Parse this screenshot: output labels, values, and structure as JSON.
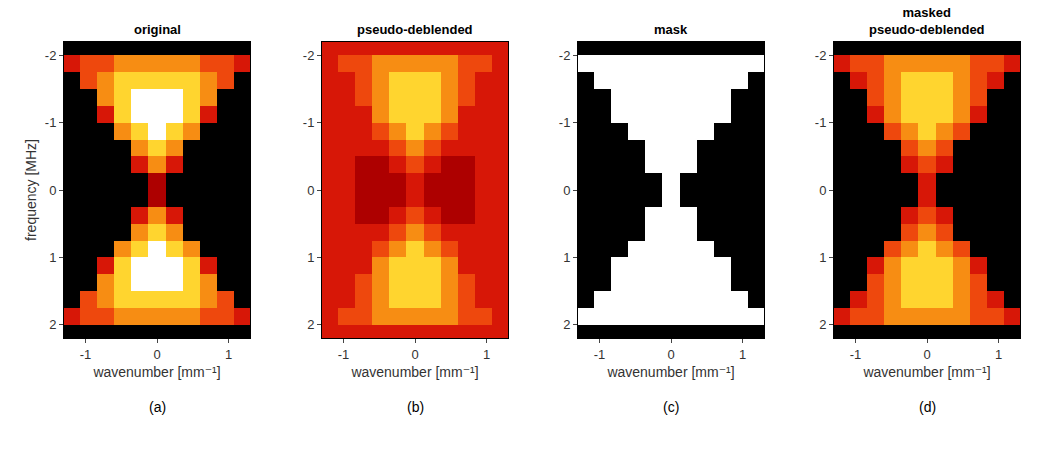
{
  "chart_data": [
    {
      "type": "heatmap",
      "title": "original",
      "panel_label": "(a)",
      "x_label": "wavenumber [mm⁻¹]",
      "y_label": "frequency [MHz]",
      "xlim": [
        -1.3,
        1.3
      ],
      "ylim": [
        2.2,
        -2.2
      ],
      "xticks": [
        -1,
        0,
        1
      ],
      "yticks": [
        -2,
        -1,
        0,
        1,
        2
      ],
      "zlim": [
        0,
        9
      ],
      "x": [
        -1.2,
        -0.96,
        -0.72,
        -0.48,
        -0.24,
        0,
        0.24,
        0.48,
        0.72,
        0.96,
        1.2
      ],
      "y": [
        -2.125,
        -1.875,
        -1.625,
        -1.375,
        -1.125,
        -0.875,
        -0.625,
        -0.375,
        -0.125,
        0.125,
        0.375,
        0.625,
        0.875,
        1.125,
        1.375,
        1.625,
        1.875,
        2.125
      ],
      "z": [
        [
          0,
          0,
          0,
          0,
          0,
          0,
          0,
          0,
          0,
          0,
          0
        ],
        [
          5,
          6,
          6,
          7,
          7,
          7,
          7,
          7,
          6,
          6,
          5
        ],
        [
          0,
          6,
          7,
          8,
          8,
          8,
          8,
          8,
          7,
          6,
          0
        ],
        [
          0,
          0,
          7,
          8,
          9,
          9,
          9,
          8,
          7,
          0,
          0
        ],
        [
          0,
          0,
          5,
          8,
          9,
          9,
          9,
          8,
          5,
          0,
          0
        ],
        [
          0,
          0,
          0,
          7,
          8,
          9,
          8,
          7,
          0,
          0,
          0
        ],
        [
          0,
          0,
          0,
          0,
          7,
          8,
          7,
          0,
          0,
          0,
          0
        ],
        [
          0,
          0,
          0,
          0,
          5,
          7,
          5,
          0,
          0,
          0,
          0
        ],
        [
          0,
          0,
          0,
          0,
          0,
          4,
          0,
          0,
          0,
          0,
          0
        ],
        [
          0,
          0,
          0,
          0,
          0,
          4,
          0,
          0,
          0,
          0,
          0
        ],
        [
          0,
          0,
          0,
          0,
          5,
          7,
          5,
          0,
          0,
          0,
          0
        ],
        [
          0,
          0,
          0,
          0,
          7,
          8,
          7,
          0,
          0,
          0,
          0
        ],
        [
          0,
          0,
          0,
          7,
          8,
          9,
          8,
          7,
          0,
          0,
          0
        ],
        [
          0,
          0,
          5,
          8,
          9,
          9,
          9,
          8,
          5,
          0,
          0
        ],
        [
          0,
          0,
          7,
          8,
          9,
          9,
          9,
          8,
          7,
          0,
          0
        ],
        [
          0,
          6,
          7,
          8,
          8,
          8,
          8,
          8,
          7,
          6,
          0
        ],
        [
          5,
          6,
          6,
          7,
          7,
          7,
          7,
          7,
          6,
          6,
          5
        ],
        [
          0,
          0,
          0,
          0,
          0,
          0,
          0,
          0,
          0,
          0,
          0
        ]
      ]
    },
    {
      "type": "heatmap",
      "title": "pseudo-deblended",
      "panel_label": "(b)",
      "x_label": "wavenumber [mm⁻¹]",
      "xlim": [
        -1.3,
        1.3
      ],
      "ylim": [
        2.2,
        -2.2
      ],
      "xticks": [
        -1,
        0,
        1
      ],
      "yticks": [
        -2,
        -1,
        0,
        1,
        2
      ],
      "zlim": [
        0,
        9
      ],
      "x": [
        -1.2,
        -0.96,
        -0.72,
        -0.48,
        -0.24,
        0,
        0.24,
        0.48,
        0.72,
        0.96,
        1.2
      ],
      "y": [
        -2.125,
        -1.875,
        -1.625,
        -1.375,
        -1.125,
        -0.875,
        -0.625,
        -0.375,
        -0.125,
        0.125,
        0.375,
        0.625,
        0.875,
        1.125,
        1.375,
        1.625,
        1.875,
        2.125
      ],
      "z": [
        [
          5,
          5,
          5,
          5,
          5,
          5,
          5,
          5,
          5,
          5,
          5
        ],
        [
          5,
          6,
          6,
          7,
          7,
          7,
          7,
          7,
          6,
          6,
          5
        ],
        [
          5,
          5,
          6,
          7,
          8,
          8,
          8,
          7,
          6,
          5,
          5
        ],
        [
          5,
          5,
          6,
          7,
          8,
          8,
          8,
          7,
          6,
          5,
          5
        ],
        [
          5,
          5,
          5,
          7,
          8,
          8,
          8,
          7,
          5,
          5,
          5
        ],
        [
          5,
          5,
          5,
          6,
          7,
          8,
          7,
          6,
          5,
          5,
          5
        ],
        [
          5,
          5,
          5,
          5,
          6,
          7,
          6,
          5,
          5,
          5,
          5
        ],
        [
          5,
          5,
          4,
          4,
          5,
          6,
          5,
          4,
          4,
          5,
          5
        ],
        [
          5,
          5,
          4,
          4,
          4,
          5,
          4,
          4,
          4,
          5,
          5
        ],
        [
          5,
          5,
          4,
          4,
          4,
          5,
          4,
          4,
          4,
          5,
          5
        ],
        [
          5,
          5,
          4,
          4,
          5,
          6,
          5,
          4,
          4,
          5,
          5
        ],
        [
          5,
          5,
          5,
          5,
          6,
          7,
          6,
          5,
          5,
          5,
          5
        ],
        [
          5,
          5,
          5,
          6,
          7,
          8,
          7,
          6,
          5,
          5,
          5
        ],
        [
          5,
          5,
          5,
          7,
          8,
          8,
          8,
          7,
          5,
          5,
          5
        ],
        [
          5,
          5,
          6,
          7,
          8,
          8,
          8,
          7,
          6,
          5,
          5
        ],
        [
          5,
          5,
          6,
          7,
          8,
          8,
          8,
          7,
          6,
          5,
          5
        ],
        [
          5,
          6,
          6,
          7,
          7,
          7,
          7,
          7,
          6,
          6,
          5
        ],
        [
          5,
          5,
          5,
          5,
          5,
          5,
          5,
          5,
          5,
          5,
          5
        ]
      ]
    },
    {
      "type": "heatmap",
      "title": "mask",
      "panel_label": "(c)",
      "x_label": "wavenumber [mm⁻¹]",
      "xlim": [
        -1.3,
        1.3
      ],
      "ylim": [
        2.2,
        -2.2
      ],
      "xticks": [
        -1,
        0,
        1
      ],
      "yticks": [
        -2,
        -1,
        0,
        1,
        2
      ],
      "zlim": [
        0,
        9
      ],
      "x": [
        -1.2,
        -0.96,
        -0.72,
        -0.48,
        -0.24,
        0,
        0.24,
        0.48,
        0.72,
        0.96,
        1.2
      ],
      "y": [
        -2.125,
        -1.875,
        -1.625,
        -1.375,
        -1.125,
        -0.875,
        -0.625,
        -0.375,
        -0.125,
        0.125,
        0.375,
        0.625,
        0.875,
        1.125,
        1.375,
        1.625,
        1.875,
        2.125
      ],
      "z": [
        [
          0,
          0,
          0,
          0,
          0,
          0,
          0,
          0,
          0,
          0,
          0
        ],
        [
          9,
          9,
          9,
          9,
          9,
          9,
          9,
          9,
          9,
          9,
          9
        ],
        [
          0,
          9,
          9,
          9,
          9,
          9,
          9,
          9,
          9,
          9,
          0
        ],
        [
          0,
          0,
          9,
          9,
          9,
          9,
          9,
          9,
          9,
          0,
          0
        ],
        [
          0,
          0,
          9,
          9,
          9,
          9,
          9,
          9,
          9,
          0,
          0
        ],
        [
          0,
          0,
          0,
          9,
          9,
          9,
          9,
          9,
          0,
          0,
          0
        ],
        [
          0,
          0,
          0,
          0,
          9,
          9,
          9,
          0,
          0,
          0,
          0
        ],
        [
          0,
          0,
          0,
          0,
          9,
          9,
          9,
          0,
          0,
          0,
          0
        ],
        [
          0,
          0,
          0,
          0,
          0,
          9,
          0,
          0,
          0,
          0,
          0
        ],
        [
          0,
          0,
          0,
          0,
          0,
          9,
          0,
          0,
          0,
          0,
          0
        ],
        [
          0,
          0,
          0,
          0,
          9,
          9,
          9,
          0,
          0,
          0,
          0
        ],
        [
          0,
          0,
          0,
          0,
          9,
          9,
          9,
          0,
          0,
          0,
          0
        ],
        [
          0,
          0,
          0,
          9,
          9,
          9,
          9,
          9,
          0,
          0,
          0
        ],
        [
          0,
          0,
          9,
          9,
          9,
          9,
          9,
          9,
          9,
          0,
          0
        ],
        [
          0,
          0,
          9,
          9,
          9,
          9,
          9,
          9,
          9,
          0,
          0
        ],
        [
          0,
          9,
          9,
          9,
          9,
          9,
          9,
          9,
          9,
          9,
          0
        ],
        [
          9,
          9,
          9,
          9,
          9,
          9,
          9,
          9,
          9,
          9,
          9
        ],
        [
          0,
          0,
          0,
          0,
          0,
          0,
          0,
          0,
          0,
          0,
          0
        ]
      ]
    },
    {
      "type": "heatmap",
      "title": "masked pseudo-deblended",
      "panel_label": "(d)",
      "x_label": "wavenumber [mm⁻¹]",
      "xlim": [
        -1.3,
        1.3
      ],
      "ylim": [
        2.2,
        -2.2
      ],
      "xticks": [
        -1,
        0,
        1
      ],
      "yticks": [
        -2,
        -1,
        0,
        1,
        2
      ],
      "zlim": [
        0,
        9
      ],
      "x": [
        -1.2,
        -0.96,
        -0.72,
        -0.48,
        -0.24,
        0,
        0.24,
        0.48,
        0.72,
        0.96,
        1.2
      ],
      "y": [
        -2.125,
        -1.875,
        -1.625,
        -1.375,
        -1.125,
        -0.875,
        -0.625,
        -0.375,
        -0.125,
        0.125,
        0.375,
        0.625,
        0.875,
        1.125,
        1.375,
        1.625,
        1.875,
        2.125
      ],
      "z": [
        [
          0,
          0,
          0,
          0,
          0,
          0,
          0,
          0,
          0,
          0,
          0
        ],
        [
          5,
          6,
          6,
          7,
          7,
          7,
          7,
          7,
          6,
          6,
          5
        ],
        [
          0,
          5,
          6,
          7,
          8,
          8,
          8,
          7,
          6,
          5,
          0
        ],
        [
          0,
          0,
          6,
          7,
          8,
          8,
          8,
          7,
          6,
          0,
          0
        ],
        [
          0,
          0,
          5,
          7,
          8,
          8,
          8,
          7,
          5,
          0,
          0
        ],
        [
          0,
          0,
          0,
          6,
          7,
          8,
          7,
          6,
          0,
          0,
          0
        ],
        [
          0,
          0,
          0,
          0,
          6,
          7,
          6,
          0,
          0,
          0,
          0
        ],
        [
          0,
          0,
          0,
          0,
          5,
          6,
          5,
          0,
          0,
          0,
          0
        ],
        [
          0,
          0,
          0,
          0,
          0,
          5,
          0,
          0,
          0,
          0,
          0
        ],
        [
          0,
          0,
          0,
          0,
          0,
          5,
          0,
          0,
          0,
          0,
          0
        ],
        [
          0,
          0,
          0,
          0,
          5,
          6,
          5,
          0,
          0,
          0,
          0
        ],
        [
          0,
          0,
          0,
          0,
          6,
          7,
          6,
          0,
          0,
          0,
          0
        ],
        [
          0,
          0,
          0,
          6,
          7,
          8,
          7,
          6,
          0,
          0,
          0
        ],
        [
          0,
          0,
          5,
          7,
          8,
          8,
          8,
          7,
          5,
          0,
          0
        ],
        [
          0,
          0,
          6,
          7,
          8,
          8,
          8,
          7,
          6,
          0,
          0
        ],
        [
          0,
          5,
          6,
          7,
          8,
          8,
          8,
          7,
          6,
          5,
          0
        ],
        [
          5,
          6,
          6,
          7,
          7,
          7,
          7,
          7,
          6,
          6,
          5
        ],
        [
          0,
          0,
          0,
          0,
          0,
          0,
          0,
          0,
          0,
          0,
          0
        ]
      ]
    }
  ]
}
